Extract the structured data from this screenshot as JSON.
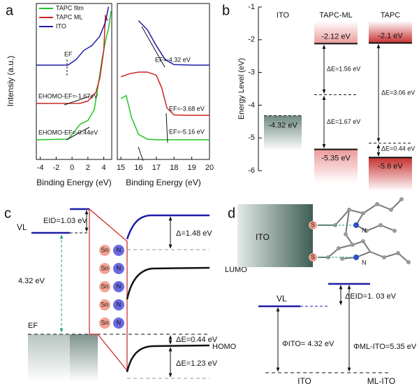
{
  "panels": {
    "a": {
      "label": "a",
      "ylabel": "Intensiy (a.u.)",
      "ylim": [
        0,
        10
      ],
      "series": [
        {
          "name": "TAPC film",
          "color": "#22c322"
        },
        {
          "name": "TAPC ML",
          "color": "#cc2222"
        },
        {
          "name": "ITO",
          "color": "#1c1ca8"
        }
      ],
      "plots": [
        {
          "xlabel": "Binding Energy (eV)",
          "xlim": [
            -4.5,
            5
          ],
          "xticks": [
            -4,
            -2,
            0,
            2,
            4
          ],
          "annotations": [
            "EF",
            "EHOMO-EF=-1.67eV",
            "EHOMO-EF=-0.44eV"
          ],
          "curves": [
            {
              "x": [
                -4.5,
                -0.5,
                0.3,
                1,
                2,
                2.8,
                3.3,
                3.8,
                4.3,
                4.6,
                4.9
              ],
              "y": [
                1.26,
                1.3,
                1.8,
                2.25,
                2.5,
                3.2,
                4.8,
                6.5,
                7.8,
                8.4,
                9.5
              ]
            },
            {
              "x": [
                -4.5,
                1,
                2,
                3,
                3.5,
                4,
                4.2,
                4.5
              ],
              "y": [
                3.59,
                3.6,
                3.75,
                4.3,
                5.2,
                7,
                9.2,
                8.9
              ]
            },
            {
              "x": [
                -4.5,
                -0.5,
                0.5,
                1.5,
                2.5,
                3.5,
                4.2,
                4.6
              ],
              "y": [
                6.05,
                6.05,
                6.4,
                7,
                7.3,
                7.9,
                8.8,
                9.8
              ]
            }
          ]
        },
        {
          "xlabel": "Binding Energy (eV)",
          "xlim": [
            14.8,
            20
          ],
          "xticks": [
            15,
            16,
            17,
            18,
            19,
            20
          ],
          "annotations": [
            "EF=-4.32 eV",
            "EF=-3.68 eV",
            "EF=-5.16 eV"
          ],
          "curves": [
            {
              "x": [
                15,
                15.3,
                15.6,
                16,
                16.5,
                17,
                20
              ],
              "y": [
                3.9,
                4.1,
                2.7,
                1.6,
                1.3,
                1.26,
                1.26
              ]
            },
            {
              "x": [
                15,
                15.5,
                16,
                16.5,
                17,
                17.3,
                17.6,
                18,
                19,
                20
              ],
              "y": [
                5.3,
                5.5,
                5.6,
                5.6,
                5.4,
                4.6,
                3.3,
                2.85,
                2.83,
                2.83
              ]
            },
            {
              "x": [
                16,
                16.5,
                17,
                17.5,
                18,
                19,
                20
              ],
              "y": [
                8.9,
                8.3,
                7.3,
                6.4,
                6.08,
                6.05,
                6.05
              ]
            }
          ]
        }
      ]
    },
    "b": {
      "label": "b",
      "ylabel": "Energy Level (eV)",
      "ylim": [
        -6,
        -1
      ],
      "yticks": [
        -1,
        -2,
        -3,
        -4,
        -5,
        -6
      ],
      "columns": [
        {
          "name": "ITO",
          "levels": [
            -4.32
          ],
          "value_labels": [
            "-4.32 eV"
          ]
        },
        {
          "name": "TAPC-ML",
          "levels": [
            -2.12,
            -5.35
          ],
          "value_labels": [
            "-2.12 eV",
            "-5.35 eV"
          ],
          "mid_level": -3.68,
          "gaps": [
            "ΔE=1.56 eV",
            "ΔE=1.67 eV"
          ]
        },
        {
          "name": "TAPC",
          "levels": [
            -2.1,
            -5.6
          ],
          "value_labels": [
            "-2.1 eV",
            "-5.6 eV"
          ],
          "mid_level": -5.16,
          "gaps": [
            "ΔE=3.06 eV",
            "ΔE=0.44 eV"
          ]
        }
      ]
    },
    "c": {
      "label": "c",
      "eid": "EID=1.03 eV",
      "vl": "VL",
      "work_function": "4.32 eV",
      "ef": "EF",
      "sites": [
        [
          "Sn",
          "N"
        ],
        [
          "Sn",
          "N"
        ],
        [
          "Sn",
          "N"
        ],
        [
          "Sn",
          "N"
        ],
        [
          "Sn",
          "N"
        ]
      ],
      "delta": "Δ=1.48 eV",
      "lumo": "LUMO",
      "homo": "HOMO",
      "de_ef": "ΔE=0.44 eV",
      "de_homo": "ΔE=1.23 eV"
    },
    "d": {
      "label": "d",
      "ito_block": "ITO",
      "atoms": [
        "S",
        "N"
      ],
      "vl": "VL",
      "delta_eid": "ΔEID=1. 03 eV",
      "phi_ito": "ΦITO= 4.32 eV",
      "phi_ml": "ΦML-ITO=5.35 eV",
      "bottom_labels": [
        "ITO",
        "ML-ITO"
      ]
    }
  }
}
